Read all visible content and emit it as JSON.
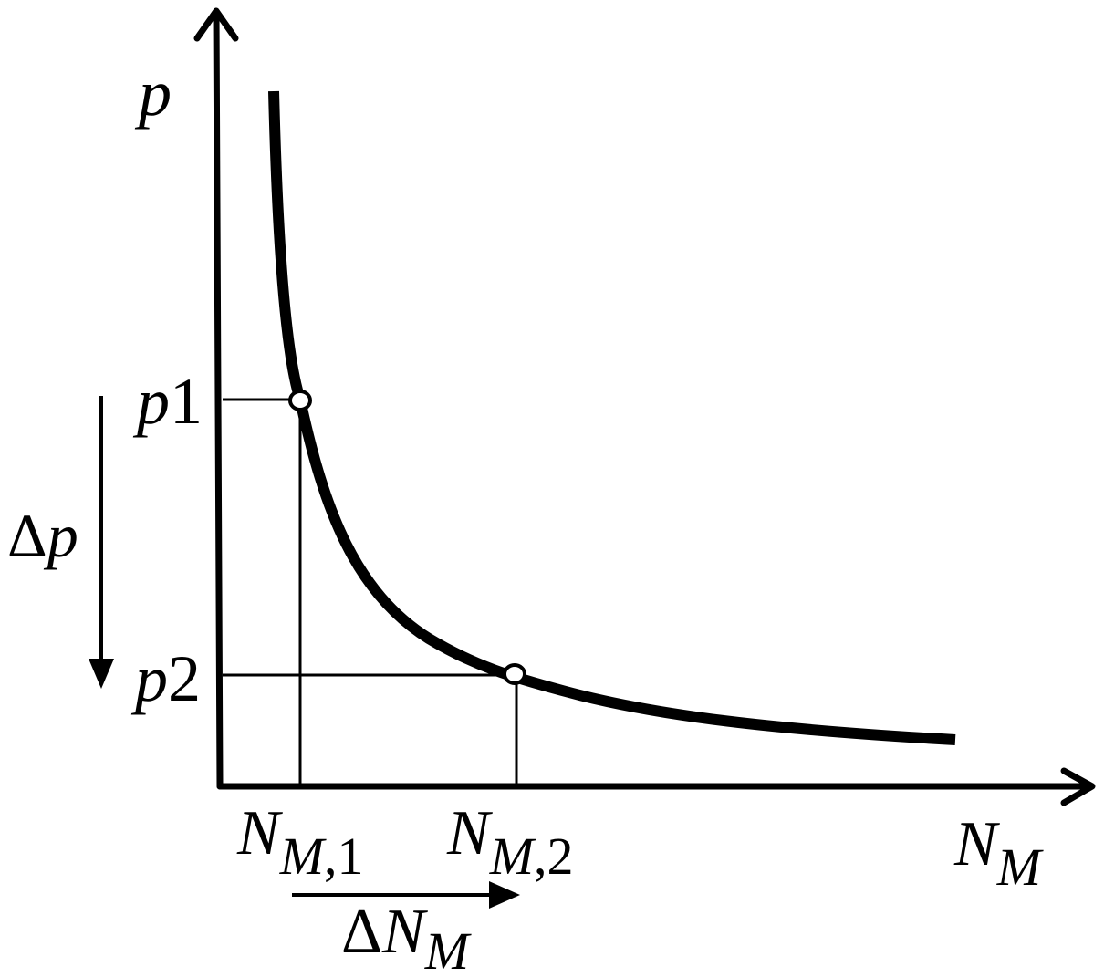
{
  "diagram": {
    "y_axis_label": "p",
    "x_axis_label": {
      "base": "N",
      "sub": "M"
    },
    "p1_label": {
      "base": "p",
      "sub": "1"
    },
    "p2_label": {
      "base": "p",
      "sub": "2"
    },
    "nm1_label": {
      "base": "N",
      "sub": "M",
      "index": ",1"
    },
    "nm2_label": {
      "base": "N",
      "sub": "M",
      "index": ",2"
    },
    "delta_p_label": {
      "delta": "Δ",
      "base": "p"
    },
    "delta_nm_label": {
      "delta": "Δ",
      "base": "N",
      "sub": "M"
    },
    "colors": {
      "ink": "#000000",
      "background": "#ffffff"
    }
  }
}
